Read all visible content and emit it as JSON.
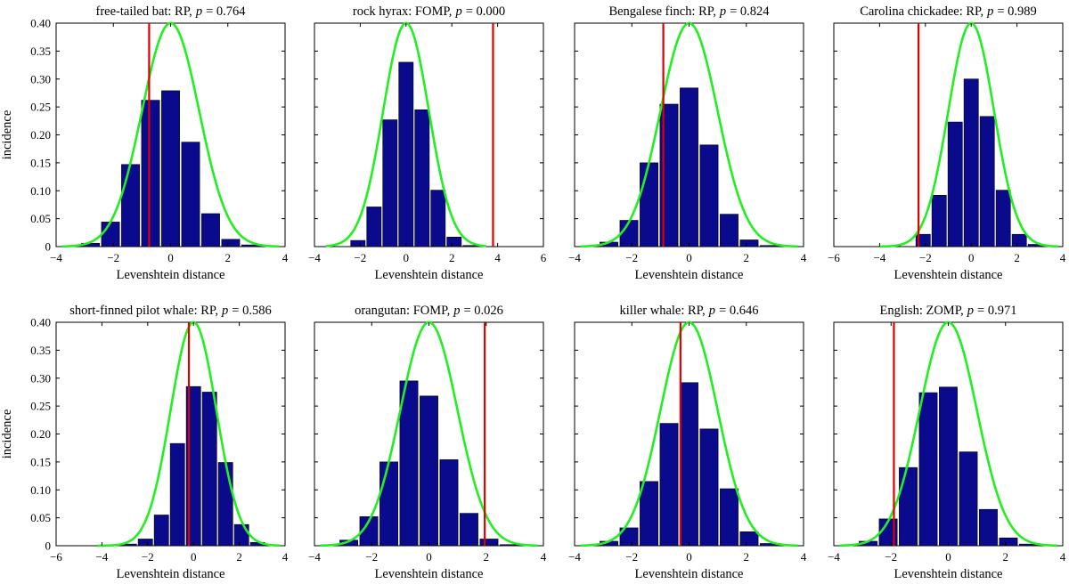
{
  "figure": {
    "y_axis_label": "incidence"
  },
  "colors": {
    "bar": "#0a0a8c",
    "curve": "#22ee22",
    "observed": "#dd0000",
    "axis": "#000000"
  },
  "chart_data": [
    {
      "type": "bar",
      "title_name": "free-tailed bat: RP,",
      "title_p": "p",
      "title_value": "= 0.764",
      "xlabel": "Levenshtein distance",
      "ylabel": "incidence",
      "xlim": [
        -4,
        4
      ],
      "ylim": [
        0,
        0.4
      ],
      "xticks": [
        -4,
        -2,
        0,
        2,
        4
      ],
      "yticks": [
        0,
        0.05,
        0.1,
        0.15,
        0.2,
        0.25,
        0.3,
        0.35,
        0.4
      ],
      "ytick_labels": [
        "0",
        "0.05",
        "0.10",
        "0.15",
        "0.20",
        "0.25",
        "0.30",
        "0.35",
        "0.40"
      ],
      "bar_width": 0.63,
      "bars": [
        {
          "x": -2.8,
          "y": 0.006
        },
        {
          "x": -2.1,
          "y": 0.044
        },
        {
          "x": -1.4,
          "y": 0.147
        },
        {
          "x": -0.7,
          "y": 0.262
        },
        {
          "x": 0.0,
          "y": 0.279
        },
        {
          "x": 0.7,
          "y": 0.187
        },
        {
          "x": 1.4,
          "y": 0.059
        },
        {
          "x": 2.1,
          "y": 0.013
        },
        {
          "x": 2.8,
          "y": 0.003
        }
      ],
      "normal_curve": {
        "mean": 0.0,
        "sd": 1.0,
        "peak": 0.4,
        "from": -3.8,
        "to": 3.8
      },
      "observed": -0.75
    },
    {
      "type": "bar",
      "title_name": "rock hyrax: FOMP,",
      "title_p": "p",
      "title_value": "= 0.000",
      "xlabel": "Levenshtein distance",
      "ylabel": "",
      "xlim": [
        -4,
        6
      ],
      "ylim": [
        0,
        0.4
      ],
      "xticks": [
        -4,
        -2,
        0,
        2,
        4,
        6
      ],
      "yticks": [],
      "ytick_labels": [],
      "bar_width": 0.63,
      "bars": [
        {
          "x": -2.1,
          "y": 0.011
        },
        {
          "x": -1.4,
          "y": 0.071
        },
        {
          "x": -0.7,
          "y": 0.227
        },
        {
          "x": 0.0,
          "y": 0.33
        },
        {
          "x": 0.7,
          "y": 0.245
        },
        {
          "x": 1.4,
          "y": 0.101
        },
        {
          "x": 2.1,
          "y": 0.017
        },
        {
          "x": 2.8,
          "y": 0.002
        }
      ],
      "normal_curve": {
        "mean": 0.0,
        "sd": 1.0,
        "peak": 0.4,
        "from": -3.5,
        "to": 3.5
      },
      "observed": 3.8
    },
    {
      "type": "bar",
      "title_name": "Bengalese finch: RP,",
      "title_p": "p",
      "title_value": "= 0.824",
      "xlabel": "Levenshtein distance",
      "ylabel": "",
      "xlim": [
        -4,
        4
      ],
      "ylim": [
        0,
        0.4
      ],
      "xticks": [
        -4,
        -2,
        0,
        2,
        4
      ],
      "yticks": [],
      "ytick_labels": [],
      "bar_width": 0.63,
      "bars": [
        {
          "x": -2.8,
          "y": 0.008
        },
        {
          "x": -2.1,
          "y": 0.047
        },
        {
          "x": -1.4,
          "y": 0.15
        },
        {
          "x": -0.7,
          "y": 0.255
        },
        {
          "x": 0.0,
          "y": 0.284
        },
        {
          "x": 0.7,
          "y": 0.182
        },
        {
          "x": 1.4,
          "y": 0.058
        },
        {
          "x": 2.1,
          "y": 0.012
        },
        {
          "x": 2.8,
          "y": 0.002
        }
      ],
      "normal_curve": {
        "mean": 0.0,
        "sd": 1.0,
        "peak": 0.4,
        "from": -3.8,
        "to": 3.8
      },
      "observed": -0.9
    },
    {
      "type": "bar",
      "title_name": "Carolina chickadee: RP,",
      "title_p": "p",
      "title_value": "= 0.989",
      "xlabel": "Levenshtein distance",
      "ylabel": "",
      "xlim": [
        -6,
        4
      ],
      "ylim": [
        0,
        0.4
      ],
      "xticks": [
        -6,
        -4,
        -2,
        0,
        2,
        4
      ],
      "yticks": [],
      "ytick_labels": [],
      "bar_width": 0.63,
      "bars": [
        {
          "x": -2.1,
          "y": 0.022
        },
        {
          "x": -1.4,
          "y": 0.092
        },
        {
          "x": -0.7,
          "y": 0.223
        },
        {
          "x": 0.0,
          "y": 0.3
        },
        {
          "x": 0.7,
          "y": 0.233
        },
        {
          "x": 1.4,
          "y": 0.101
        },
        {
          "x": 2.1,
          "y": 0.022
        },
        {
          "x": 2.8,
          "y": 0.004
        }
      ],
      "normal_curve": {
        "mean": 0.0,
        "sd": 1.0,
        "peak": 0.4,
        "from": -4.0,
        "to": 3.8
      },
      "observed": -2.3
    },
    {
      "type": "bar",
      "title_name": "short-finned pilot whale: RP,",
      "title_p": "p",
      "title_value": "= 0.586",
      "xlabel": "Levenshtein distance",
      "ylabel": "incidence",
      "xlim": [
        -6,
        4
      ],
      "ylim": [
        0,
        0.4
      ],
      "xticks": [
        -6,
        -4,
        -2,
        0,
        2,
        4
      ],
      "yticks": [
        0,
        0.05,
        0.1,
        0.15,
        0.2,
        0.25,
        0.3,
        0.35,
        0.4
      ],
      "ytick_labels": [
        "0",
        "0.05",
        "0.10",
        "0.15",
        "0.20",
        "0.25",
        "0.30",
        "0.35",
        "0.40"
      ],
      "bar_width": 0.63,
      "bars": [
        {
          "x": -2.8,
          "y": 0.003
        },
        {
          "x": -2.1,
          "y": 0.012
        },
        {
          "x": -1.4,
          "y": 0.055
        },
        {
          "x": -0.7,
          "y": 0.183
        },
        {
          "x": 0.0,
          "y": 0.285
        },
        {
          "x": 0.7,
          "y": 0.275
        },
        {
          "x": 1.4,
          "y": 0.149
        },
        {
          "x": 2.1,
          "y": 0.038
        },
        {
          "x": 2.8,
          "y": 0.006
        }
      ],
      "normal_curve": {
        "mean": 0.0,
        "sd": 1.0,
        "peak": 0.4,
        "from": -4.2,
        "to": 3.8
      },
      "observed": -0.2
    },
    {
      "type": "bar",
      "title_name": "orangutan: FOMP,",
      "title_p": "p",
      "title_value": "= 0.026",
      "xlabel": "Levenshtein distance",
      "ylabel": "",
      "xlim": [
        -4,
        4
      ],
      "ylim": [
        0,
        0.4
      ],
      "xticks": [
        -4,
        -2,
        0,
        2,
        4
      ],
      "yticks": [],
      "ytick_labels": [],
      "bar_width": 0.63,
      "bars": [
        {
          "x": -2.8,
          "y": 0.01
        },
        {
          "x": -2.1,
          "y": 0.052
        },
        {
          "x": -1.4,
          "y": 0.15
        },
        {
          "x": -0.7,
          "y": 0.295
        },
        {
          "x": 0.0,
          "y": 0.268
        },
        {
          "x": 0.7,
          "y": 0.154
        },
        {
          "x": 1.4,
          "y": 0.058
        },
        {
          "x": 2.1,
          "y": 0.012
        },
        {
          "x": 2.8,
          "y": 0.002
        }
      ],
      "normal_curve": {
        "mean": 0.0,
        "sd": 1.0,
        "peak": 0.4,
        "from": -3.8,
        "to": 3.8
      },
      "observed": 1.95
    },
    {
      "type": "bar",
      "title_name": "killer whale: RP,",
      "title_p": "p",
      "title_value": "= 0.646",
      "xlabel": "Levenshtein distance",
      "ylabel": "",
      "xlim": [
        -4,
        4
      ],
      "ylim": [
        0,
        0.4
      ],
      "xticks": [
        -4,
        -2,
        0,
        2,
        4
      ],
      "yticks": [],
      "ytick_labels": [],
      "bar_width": 0.63,
      "bars": [
        {
          "x": -2.8,
          "y": 0.008
        },
        {
          "x": -2.1,
          "y": 0.032
        },
        {
          "x": -1.4,
          "y": 0.115
        },
        {
          "x": -0.7,
          "y": 0.219
        },
        {
          "x": 0.0,
          "y": 0.292
        },
        {
          "x": 0.7,
          "y": 0.209
        },
        {
          "x": 1.4,
          "y": 0.102
        },
        {
          "x": 2.1,
          "y": 0.025
        },
        {
          "x": 2.8,
          "y": 0.004
        }
      ],
      "normal_curve": {
        "mean": 0.0,
        "sd": 1.0,
        "peak": 0.4,
        "from": -3.8,
        "to": 3.8
      },
      "observed": -0.3
    },
    {
      "type": "bar",
      "title_name": "English: ZOMP,",
      "title_p": "p",
      "title_value": "= 0.971",
      "xlabel": "Levenshtein distance",
      "ylabel": "",
      "xlim": [
        -4,
        4
      ],
      "ylim": [
        0,
        0.4
      ],
      "xticks": [
        -4,
        -2,
        0,
        2,
        4
      ],
      "yticks": [],
      "ytick_labels": [],
      "bar_width": 0.63,
      "bars": [
        {
          "x": -2.8,
          "y": 0.008
        },
        {
          "x": -2.1,
          "y": 0.048
        },
        {
          "x": -1.4,
          "y": 0.14
        },
        {
          "x": -0.7,
          "y": 0.274
        },
        {
          "x": 0.0,
          "y": 0.284
        },
        {
          "x": 0.7,
          "y": 0.168
        },
        {
          "x": 1.4,
          "y": 0.065
        },
        {
          "x": 2.1,
          "y": 0.014
        },
        {
          "x": 2.8,
          "y": 0.003
        }
      ],
      "normal_curve": {
        "mean": 0.0,
        "sd": 1.0,
        "peak": 0.4,
        "from": -3.8,
        "to": 3.8
      },
      "observed": -1.9
    }
  ]
}
